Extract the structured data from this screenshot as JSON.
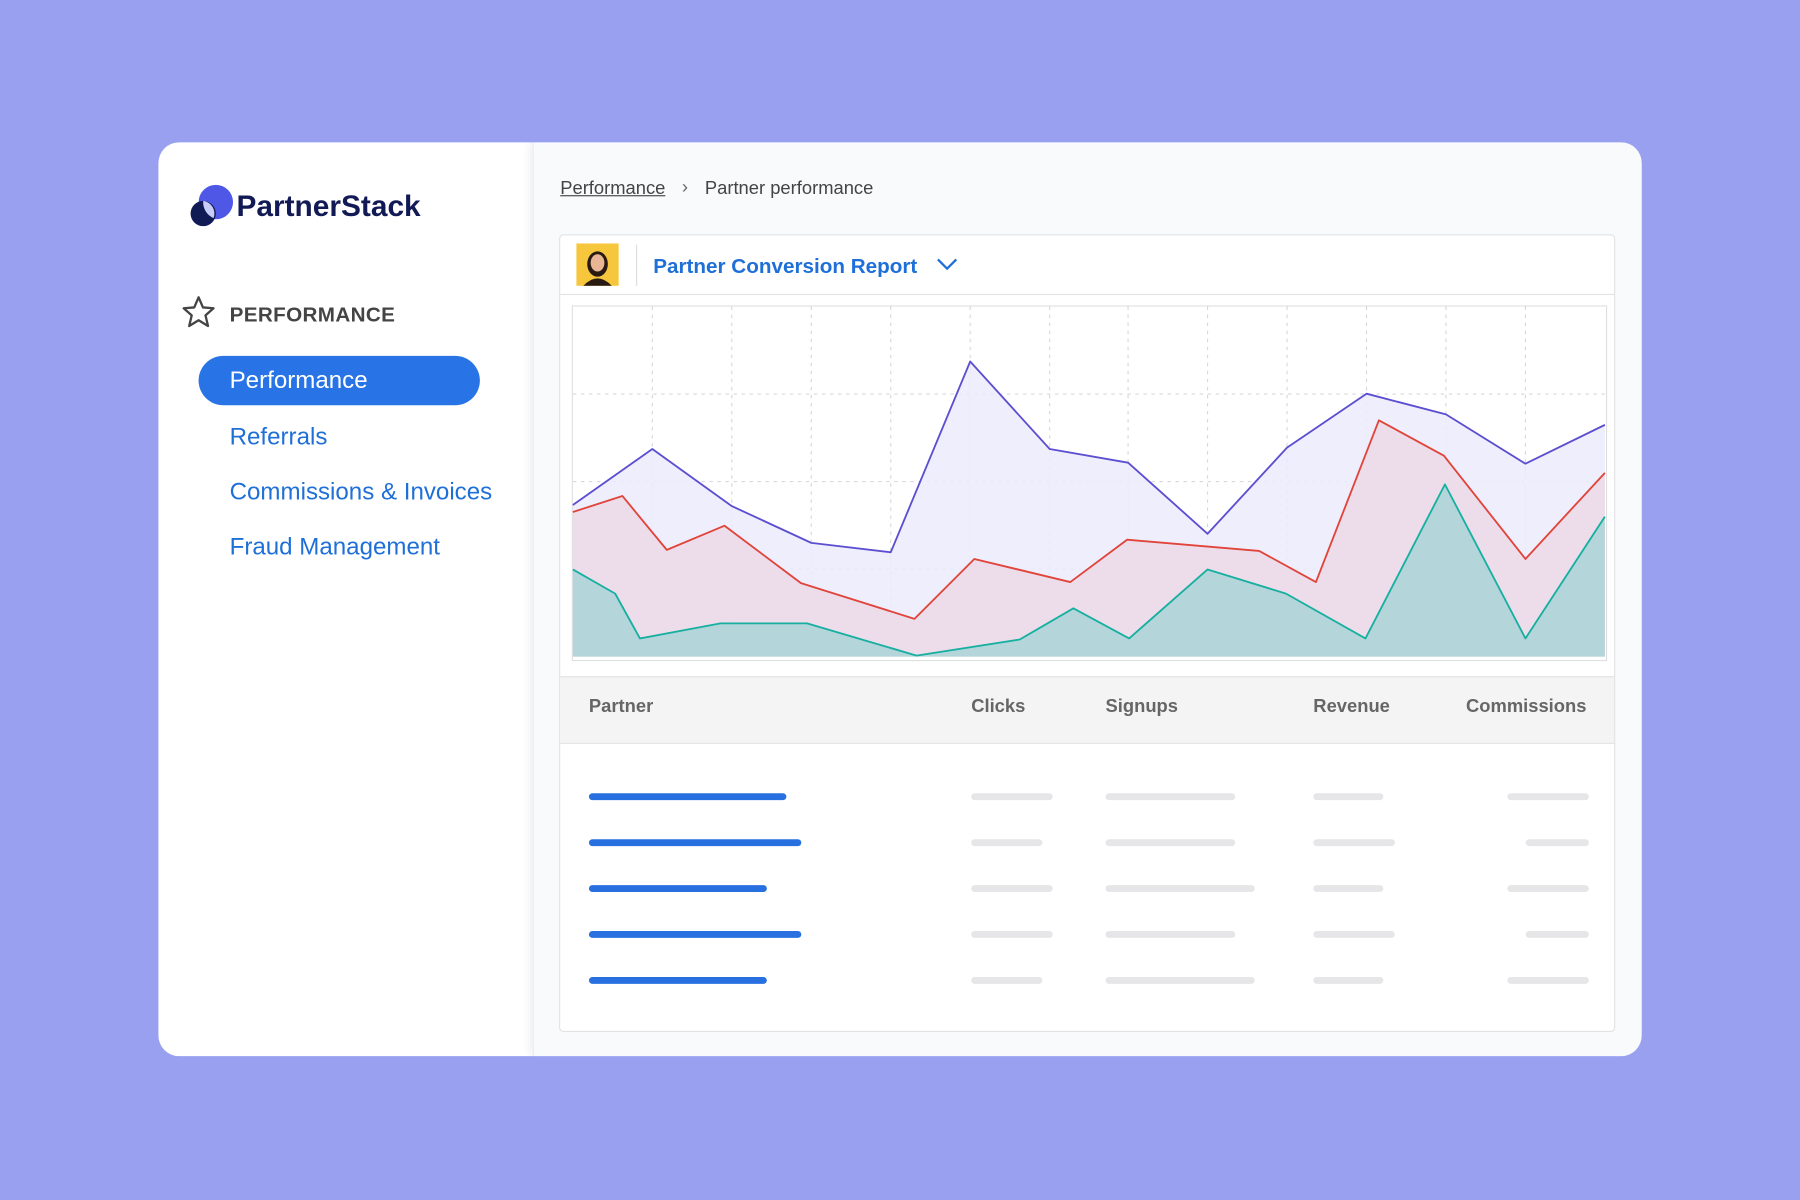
{
  "brand": "PartnerStack",
  "sidebar": {
    "section": "PERFORMANCE",
    "items": [
      "Performance",
      "Referrals",
      "Commissions & Invoices",
      "Fraud Management"
    ]
  },
  "breadcrumb": [
    "Performance",
    "Partner performance"
  ],
  "report": {
    "title": "Partner Conversion Report",
    "chart": {
      "type": "area",
      "xlim": [
        0,
        100
      ],
      "ylim": [
        0,
        100
      ],
      "xticks": [
        7.7,
        15.4,
        23.1,
        30.8,
        38.5,
        46.2,
        53.8,
        61.5,
        69.2,
        76.9,
        84.6,
        92.3
      ],
      "yticks": [
        25,
        50,
        75
      ],
      "grid": true,
      "series": [
        {
          "color": "#5b4fd0",
          "fill": "#ecebfb",
          "x": [
            0,
            7.7,
            15.4,
            23.1,
            30.8,
            38.5,
            46.2,
            53.8,
            61.5,
            69.2,
            76.9,
            84.6,
            92.3,
            100
          ],
          "values": [
            43.3,
            59.3,
            43,
            32.5,
            29.8,
            84.3,
            59.3,
            55.4,
            35.1,
            59.7,
            75.1,
            69.2,
            55.1,
            66.2
          ]
        },
        {
          "color": "#e0443a",
          "fill": "#ecd9e6",
          "x": [
            0,
            4.8,
            9.1,
            14.7,
            22.1,
            33.1,
            38.9,
            48.2,
            53.7,
            66.5,
            72,
            78.1,
            84.4,
            92.3,
            100
          ],
          "values": [
            41.3,
            45.9,
            30.5,
            37.4,
            21,
            10.8,
            27.9,
            21.3,
            33.4,
            30.2,
            21.3,
            67.5,
            57.4,
            27.9,
            52.5
          ]
        },
        {
          "color": "#17b0a0",
          "fill": "#a9d5d7",
          "x": [
            0,
            4.1,
            6.5,
            14.3,
            22.7,
            33.3,
            43.3,
            48.5,
            53.9,
            61.5,
            69.1,
            76.8,
            84.5,
            92.3,
            100
          ],
          "values": [
            24.9,
            18,
            5.2,
            9.5,
            9.5,
            0.3,
            4.9,
            13.8,
            5.2,
            24.9,
            18,
            5.2,
            49.2,
            5.2,
            40
          ]
        }
      ]
    },
    "table": {
      "columns": [
        "Partner",
        "Clicks",
        "Signups",
        "Revenue",
        "Commissions"
      ]
    }
  }
}
